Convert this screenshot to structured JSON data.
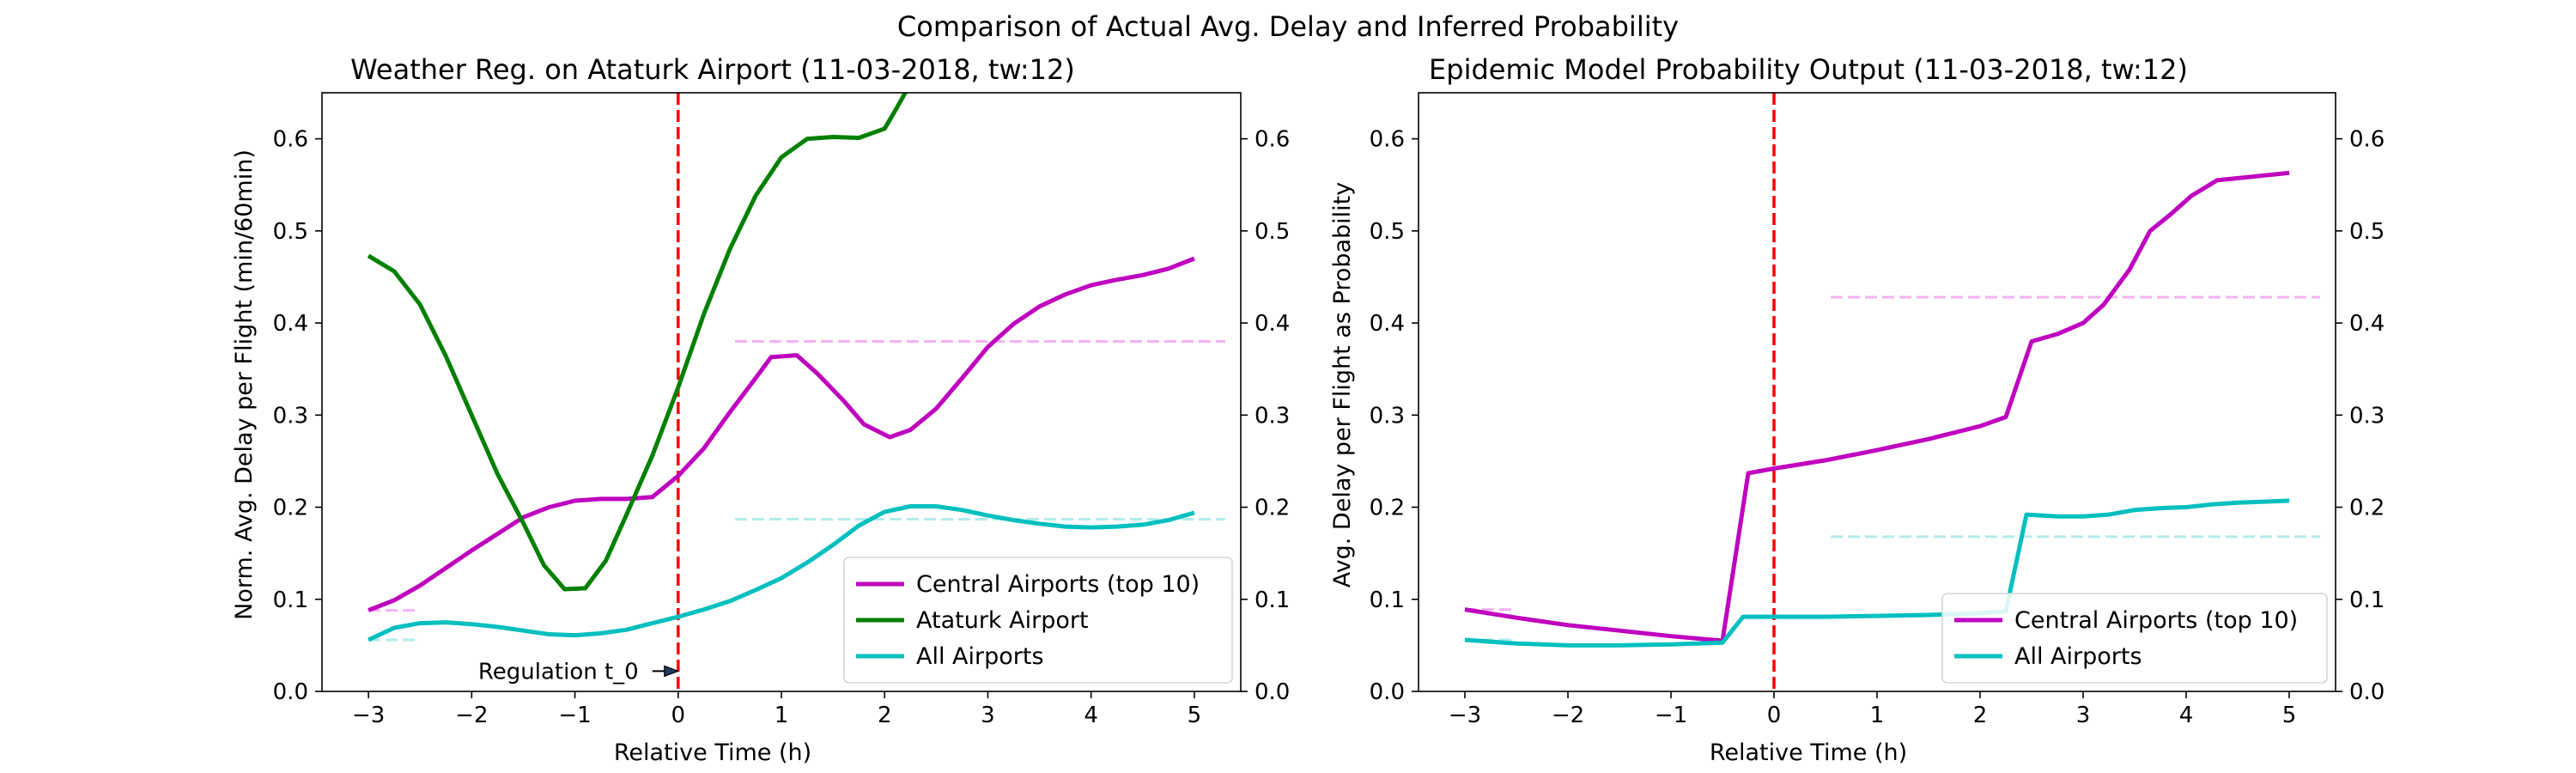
{
  "figure": {
    "suptitle": "Comparison of Actual Avg. Delay and Inferred Probability"
  },
  "chart_data": [
    {
      "type": "line",
      "title": "Weather Reg. on Ataturk Airport (11-03-2018, tw:12)",
      "xlabel": "Relative Time (h)",
      "ylabel": "Norm. Avg. Delay per Flight (min/60min)",
      "xlim": [
        -3.45,
        5.45
      ],
      "ylim": [
        0,
        0.65
      ],
      "x_ticks": [
        -3,
        -2,
        -1,
        0,
        1,
        2,
        3,
        4,
        5
      ],
      "y_ticks": [
        0.0,
        0.1,
        0.2,
        0.3,
        0.4,
        0.5,
        0.6
      ],
      "tick_labels_x": [
        "−3",
        "−2",
        "−1",
        "0",
        "1",
        "2",
        "3",
        "4",
        "5"
      ],
      "tick_labels_y": [
        "0.0",
        "0.1",
        "0.2",
        "0.3",
        "0.4",
        "0.5",
        "0.6"
      ],
      "right_axis_ticks": true,
      "grid": false,
      "legend_position": "lower-right",
      "series": [
        {
          "name": "Central Airports (top 10)",
          "color": "#bf00bf",
          "points": [
            [
              -3.0,
              0.088
            ],
            [
              -2.75,
              0.099
            ],
            [
              -2.5,
              0.115
            ],
            [
              -2.25,
              0.134
            ],
            [
              -2.0,
              0.153
            ],
            [
              -1.75,
              0.171
            ],
            [
              -1.5,
              0.189
            ],
            [
              -1.25,
              0.2
            ],
            [
              -1.0,
              0.207
            ],
            [
              -0.75,
              0.209
            ],
            [
              -0.5,
              0.209
            ],
            [
              -0.25,
              0.211
            ],
            [
              0.0,
              0.234
            ],
            [
              0.25,
              0.264
            ],
            [
              0.5,
              0.303
            ],
            [
              0.75,
              0.34
            ],
            [
              0.9,
              0.363
            ],
            [
              1.15,
              0.365
            ],
            [
              1.35,
              0.345
            ],
            [
              1.6,
              0.316
            ],
            [
              1.8,
              0.29
            ],
            [
              2.05,
              0.276
            ],
            [
              2.25,
              0.284
            ],
            [
              2.5,
              0.307
            ],
            [
              2.75,
              0.34
            ],
            [
              3.0,
              0.374
            ],
            [
              3.25,
              0.399
            ],
            [
              3.5,
              0.418
            ],
            [
              3.75,
              0.431
            ],
            [
              4.0,
              0.441
            ],
            [
              4.25,
              0.447
            ],
            [
              4.5,
              0.452
            ],
            [
              4.75,
              0.459
            ],
            [
              5.0,
              0.47
            ]
          ]
        },
        {
          "name": "Ataturk Airport",
          "color": "#008000",
          "points": [
            [
              -3.0,
              0.473
            ],
            [
              -2.75,
              0.456
            ],
            [
              -2.5,
              0.42
            ],
            [
              -2.25,
              0.364
            ],
            [
              -2.0,
              0.3
            ],
            [
              -1.75,
              0.236
            ],
            [
              -1.5,
              0.183
            ],
            [
              -1.3,
              0.137
            ],
            [
              -1.1,
              0.111
            ],
            [
              -0.9,
              0.112
            ],
            [
              -0.7,
              0.142
            ],
            [
              -0.5,
              0.192
            ],
            [
              -0.25,
              0.256
            ],
            [
              0.0,
              0.33
            ],
            [
              0.25,
              0.41
            ],
            [
              0.5,
              0.48
            ],
            [
              0.75,
              0.538
            ],
            [
              1.0,
              0.58
            ],
            [
              1.25,
              0.6
            ],
            [
              1.5,
              0.602
            ],
            [
              1.75,
              0.601
            ],
            [
              2.0,
              0.611
            ],
            [
              2.1,
              0.63
            ],
            [
              2.25,
              0.66
            ]
          ]
        },
        {
          "name": "All Airports",
          "color": "#00bfbf",
          "points": [
            [
              -3.0,
              0.056
            ],
            [
              -2.75,
              0.069
            ],
            [
              -2.5,
              0.074
            ],
            [
              -2.25,
              0.075
            ],
            [
              -2.0,
              0.073
            ],
            [
              -1.75,
              0.07
            ],
            [
              -1.5,
              0.066
            ],
            [
              -1.25,
              0.062
            ],
            [
              -1.0,
              0.061
            ],
            [
              -0.75,
              0.063
            ],
            [
              -0.5,
              0.067
            ],
            [
              -0.25,
              0.074
            ],
            [
              0.0,
              0.081
            ],
            [
              0.25,
              0.089
            ],
            [
              0.5,
              0.098
            ],
            [
              0.75,
              0.11
            ],
            [
              1.0,
              0.123
            ],
            [
              1.25,
              0.14
            ],
            [
              1.5,
              0.159
            ],
            [
              1.75,
              0.18
            ],
            [
              2.0,
              0.195
            ],
            [
              2.25,
              0.201
            ],
            [
              2.5,
              0.201
            ],
            [
              2.75,
              0.197
            ],
            [
              3.0,
              0.191
            ],
            [
              3.25,
              0.186
            ],
            [
              3.5,
              0.182
            ],
            [
              3.75,
              0.179
            ],
            [
              4.0,
              0.178
            ],
            [
              4.25,
              0.179
            ],
            [
              4.5,
              0.181
            ],
            [
              4.75,
              0.186
            ],
            [
              5.0,
              0.194
            ]
          ]
        }
      ],
      "reference_lines": [
        {
          "style": "dashed",
          "color": "#f4b2f4",
          "x": [
            -3.0,
            -2.5
          ],
          "y": 0.088
        },
        {
          "style": "dashed",
          "color": "#f4b2f4",
          "x": [
            0.55,
            5.3
          ],
          "y": 0.38
        },
        {
          "style": "dashed",
          "color": "#b2ebeb",
          "x": [
            -3.0,
            -2.5
          ],
          "y": 0.056
        },
        {
          "style": "dashed",
          "color": "#b2ebeb",
          "x": [
            0.55,
            5.3
          ],
          "y": 0.187
        },
        {
          "style": "dashed",
          "color": "#ff0000",
          "orientation": "vertical",
          "x": 0
        }
      ],
      "annotation": {
        "text": "Regulation t_0",
        "arrow_from": [
          -0.25,
          0.022
        ],
        "arrow_to": [
          0.0,
          0.022
        ]
      }
    },
    {
      "type": "line",
      "title": "Epidemic Model Probability Output (11-03-2018, tw:12)",
      "xlabel": "Relative Time (h)",
      "ylabel": "Avg. Delay per Flight as Probability",
      "xlim": [
        -3.45,
        5.45
      ],
      "ylim": [
        0,
        0.65
      ],
      "x_ticks": [
        -3,
        -2,
        -1,
        0,
        1,
        2,
        3,
        4,
        5
      ],
      "y_ticks": [
        0.0,
        0.1,
        0.2,
        0.3,
        0.4,
        0.5,
        0.6
      ],
      "tick_labels_x": [
        "−3",
        "−2",
        "−1",
        "0",
        "1",
        "2",
        "3",
        "4",
        "5"
      ],
      "tick_labels_y": [
        "0.0",
        "0.1",
        "0.2",
        "0.3",
        "0.4",
        "0.5",
        "0.6"
      ],
      "right_axis_ticks": true,
      "grid": false,
      "legend_position": "lower-right",
      "series": [
        {
          "name": "Central Airports (top 10)",
          "color": "#bf00bf",
          "points": [
            [
              -3.0,
              0.089
            ],
            [
              -2.5,
              0.08
            ],
            [
              -2.0,
              0.072
            ],
            [
              -1.5,
              0.066
            ],
            [
              -1.0,
              0.06
            ],
            [
              -0.5,
              0.055
            ],
            [
              -0.25,
              0.237
            ],
            [
              0.0,
              0.242
            ],
            [
              0.5,
              0.251
            ],
            [
              1.0,
              0.262
            ],
            [
              1.5,
              0.274
            ],
            [
              2.0,
              0.288
            ],
            [
              2.25,
              0.298
            ],
            [
              2.5,
              0.38
            ],
            [
              2.75,
              0.388
            ],
            [
              3.0,
              0.4
            ],
            [
              3.2,
              0.42
            ],
            [
              3.45,
              0.458
            ],
            [
              3.65,
              0.5
            ],
            [
              3.85,
              0.518
            ],
            [
              4.05,
              0.538
            ],
            [
              4.3,
              0.555
            ],
            [
              5.0,
              0.563
            ]
          ]
        },
        {
          "name": "All Airports",
          "color": "#00bfbf",
          "points": [
            [
              -3.0,
              0.056
            ],
            [
              -2.5,
              0.052
            ],
            [
              -2.0,
              0.05
            ],
            [
              -1.5,
              0.05
            ],
            [
              -1.0,
              0.051
            ],
            [
              -0.5,
              0.053
            ],
            [
              -0.3,
              0.081
            ],
            [
              0.0,
              0.081
            ],
            [
              0.5,
              0.081
            ],
            [
              1.0,
              0.082
            ],
            [
              1.5,
              0.083
            ],
            [
              2.0,
              0.085
            ],
            [
              2.25,
              0.087
            ],
            [
              2.45,
              0.192
            ],
            [
              2.75,
              0.19
            ],
            [
              3.0,
              0.19
            ],
            [
              3.25,
              0.192
            ],
            [
              3.5,
              0.197
            ],
            [
              3.75,
              0.199
            ],
            [
              4.0,
              0.2
            ],
            [
              4.25,
              0.203
            ],
            [
              4.5,
              0.205
            ],
            [
              5.0,
              0.207
            ]
          ]
        }
      ],
      "reference_lines": [
        {
          "style": "dashed",
          "color": "#f4b2f4",
          "x": [
            -3.0,
            -2.5
          ],
          "y": 0.089
        },
        {
          "style": "dashed",
          "color": "#f4b2f4",
          "x": [
            0.55,
            5.3
          ],
          "y": 0.428
        },
        {
          "style": "dashed",
          "color": "#b2ebeb",
          "x": [
            -3.0,
            -2.5
          ],
          "y": 0.056
        },
        {
          "style": "dashed",
          "color": "#b2ebeb",
          "x": [
            0.55,
            5.3
          ],
          "y": 0.168
        },
        {
          "style": "dashed",
          "color": "#ff0000",
          "orientation": "vertical",
          "x": 0
        }
      ]
    }
  ]
}
